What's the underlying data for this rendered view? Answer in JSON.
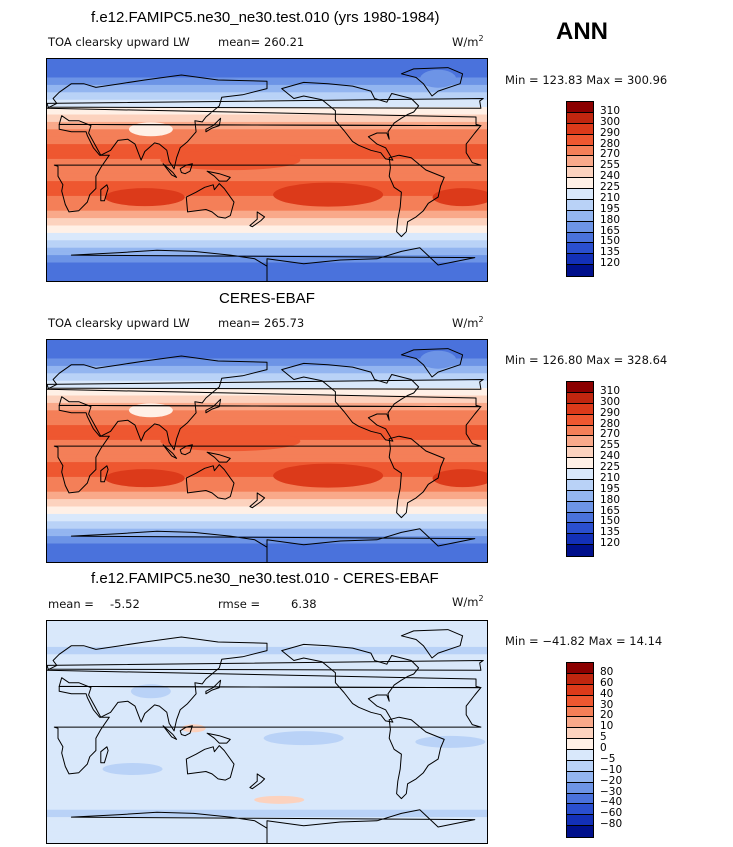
{
  "season": "ANN",
  "panels": [
    {
      "title": "f.e12.FAMIPC5.ne30_ne30.test.010 (yrs 1980-1984)",
      "variable": "TOA clearsky upward LW",
      "stat1_label": "mean=",
      "stat1_value": "260.21",
      "stat2_label": "",
      "stat2_value": "",
      "units": "W/m",
      "units_sup": "2",
      "minmax": "Min = 123.83 Max = 300.96",
      "levels": [
        "310",
        "300",
        "290",
        "280",
        "270",
        "255",
        "240",
        "225",
        "210",
        "195",
        "180",
        "165",
        "150",
        "135",
        "120"
      ],
      "colors": [
        "#8b0000",
        "#c0260f",
        "#dc3a1a",
        "#ee5730",
        "#f47f58",
        "#f9a98a",
        "#fcd2be",
        "#fff0e6",
        "#d9e8fb",
        "#b9d2f7",
        "#93b5f0",
        "#6d94e6",
        "#4a72dc",
        "#2a4fcf",
        "#1330b8",
        "#00108c"
      ],
      "map_mean_kind": "absolute"
    },
    {
      "title": "CERES-EBAF",
      "variable": "TOA clearsky upward LW",
      "stat1_label": "mean=",
      "stat1_value": "265.73",
      "stat2_label": "",
      "stat2_value": "",
      "units": "W/m",
      "units_sup": "2",
      "minmax": "Min = 126.80 Max = 328.64",
      "levels": [
        "310",
        "300",
        "290",
        "280",
        "270",
        "255",
        "240",
        "225",
        "210",
        "195",
        "180",
        "165",
        "150",
        "135",
        "120"
      ],
      "colors": [
        "#8b0000",
        "#c0260f",
        "#dc3a1a",
        "#ee5730",
        "#f47f58",
        "#f9a98a",
        "#fcd2be",
        "#fff0e6",
        "#d9e8fb",
        "#b9d2f7",
        "#93b5f0",
        "#6d94e6",
        "#4a72dc",
        "#2a4fcf",
        "#1330b8",
        "#00108c"
      ],
      "map_mean_kind": "absolute"
    },
    {
      "title": "f.e12.FAMIPC5.ne30_ne30.test.010 - CERES-EBAF",
      "variable": "",
      "stat1_label": "mean =",
      "stat1_value": "-5.52",
      "stat2_label": "rmse =",
      "stat2_value": "6.38",
      "units": "W/m",
      "units_sup": "2",
      "minmax": "Min = −41.82 Max =  14.14",
      "levels": [
        "80",
        "60",
        "40",
        "30",
        "20",
        "10",
        "5",
        "0",
        "−5",
        "−10",
        "−20",
        "−30",
        "−40",
        "−60",
        "−80"
      ],
      "colors": [
        "#8b0000",
        "#c0260f",
        "#dc3a1a",
        "#ee5730",
        "#f47f58",
        "#f9a98a",
        "#fcd2be",
        "#fff0e6",
        "#d9e8fb",
        "#b9d2f7",
        "#93b5f0",
        "#6d94e6",
        "#4a72dc",
        "#2a4fcf",
        "#1330b8",
        "#00108c"
      ],
      "map_mean_kind": "difference"
    }
  ]
}
